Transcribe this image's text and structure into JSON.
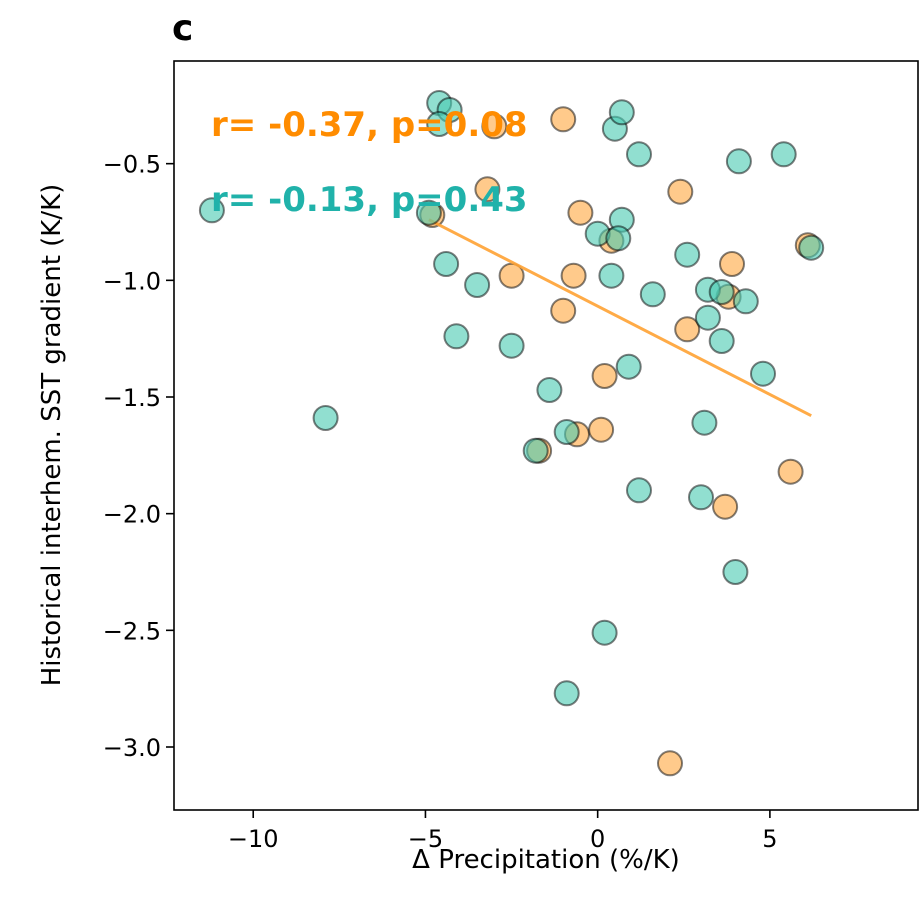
{
  "panel_label": "c",
  "colors": {
    "teal": "#48C9B0",
    "orange": "#FFA63E",
    "annotation_orange": "#FF8C00",
    "annotation_teal": "#20B2AA",
    "regression_line": "#FFA233"
  },
  "chart_data": {
    "type": "scatter",
    "title": "",
    "xlabel": "Δ Precipitation (%/K)",
    "ylabel": "Historical interhem. SST gradient (K/K)",
    "xlim": [
      -12.3,
      9.3
    ],
    "ylim": [
      -3.27,
      -0.06
    ],
    "xticks": [
      -10,
      -5,
      0,
      5
    ],
    "xtick_labels": [
      "−10",
      "−5",
      "0",
      "5"
    ],
    "yticks": [
      -3.0,
      -2.5,
      -2.0,
      -1.5,
      -1.0,
      -0.5
    ],
    "ytick_labels": [
      "−3.0",
      "−2.5",
      "−2.0",
      "−1.5",
      "−1.0",
      "−0.5"
    ],
    "grid": false,
    "legend": "none",
    "annotations": [
      {
        "text": "r= -0.37, p=0.08",
        "color": "orange"
      },
      {
        "text": "r= -0.13, p=0.43",
        "color": "teal"
      }
    ],
    "series": [
      {
        "color": "orange",
        "points": [
          {
            "x": -4.8,
            "y": -0.72
          },
          {
            "x": -3.2,
            "y": -0.61
          },
          {
            "x": -1.0,
            "y": -0.31
          },
          {
            "x": -3.0,
            "y": -0.34
          },
          {
            "x": -0.5,
            "y": -0.71
          },
          {
            "x": 0.4,
            "y": -0.83
          },
          {
            "x": 2.4,
            "y": -0.62
          },
          {
            "x": 6.1,
            "y": -0.85
          },
          {
            "x": -2.5,
            "y": -0.98
          },
          {
            "x": -0.7,
            "y": -0.98
          },
          {
            "x": 3.9,
            "y": -0.93
          },
          {
            "x": -1.0,
            "y": -1.13
          },
          {
            "x": 2.6,
            "y": -1.21
          },
          {
            "x": 3.8,
            "y": -1.07
          },
          {
            "x": 0.2,
            "y": -1.41
          },
          {
            "x": -1.7,
            "y": -1.73
          },
          {
            "x": -0.6,
            "y": -1.66
          },
          {
            "x": 0.1,
            "y": -1.64
          },
          {
            "x": 5.6,
            "y": -1.82
          },
          {
            "x": 3.7,
            "y": -1.97
          },
          {
            "x": 2.1,
            "y": -3.07
          }
        ],
        "fit_line": {
          "x": [
            -4.9,
            6.2
          ],
          "y": [
            -0.74,
            -1.58
          ]
        }
      },
      {
        "color": "teal",
        "points": [
          {
            "x": -4.6,
            "y": -0.24
          },
          {
            "x": -4.3,
            "y": -0.27
          },
          {
            "x": -4.6,
            "y": -0.33
          },
          {
            "x": 0.5,
            "y": -0.35
          },
          {
            "x": 0.7,
            "y": -0.28
          },
          {
            "x": 1.2,
            "y": -0.46
          },
          {
            "x": 4.1,
            "y": -0.49
          },
          {
            "x": 5.4,
            "y": -0.46
          },
          {
            "x": -11.2,
            "y": -0.7
          },
          {
            "x": -4.9,
            "y": -0.71
          },
          {
            "x": 0.7,
            "y": -0.74
          },
          {
            "x": 0.0,
            "y": -0.8
          },
          {
            "x": 0.6,
            "y": -0.82
          },
          {
            "x": 6.2,
            "y": -0.86
          },
          {
            "x": 2.6,
            "y": -0.89
          },
          {
            "x": -4.4,
            "y": -0.93
          },
          {
            "x": -3.5,
            "y": -1.02
          },
          {
            "x": 0.4,
            "y": -0.98
          },
          {
            "x": 1.6,
            "y": -1.06
          },
          {
            "x": 3.2,
            "y": -1.04
          },
          {
            "x": 3.6,
            "y": -1.05
          },
          {
            "x": 4.3,
            "y": -1.09
          },
          {
            "x": -4.1,
            "y": -1.24
          },
          {
            "x": -2.5,
            "y": -1.28
          },
          {
            "x": 3.2,
            "y": -1.16
          },
          {
            "x": 3.6,
            "y": -1.26
          },
          {
            "x": 0.9,
            "y": -1.37
          },
          {
            "x": 4.8,
            "y": -1.4
          },
          {
            "x": -1.4,
            "y": -1.47
          },
          {
            "x": -7.9,
            "y": -1.59
          },
          {
            "x": 3.1,
            "y": -1.61
          },
          {
            "x": -1.8,
            "y": -1.73
          },
          {
            "x": -0.9,
            "y": -1.65
          },
          {
            "x": 1.2,
            "y": -1.9
          },
          {
            "x": 3.0,
            "y": -1.93
          },
          {
            "x": 4.0,
            "y": -2.25
          },
          {
            "x": 0.2,
            "y": -2.51
          },
          {
            "x": -0.9,
            "y": -2.77
          }
        ]
      }
    ]
  }
}
